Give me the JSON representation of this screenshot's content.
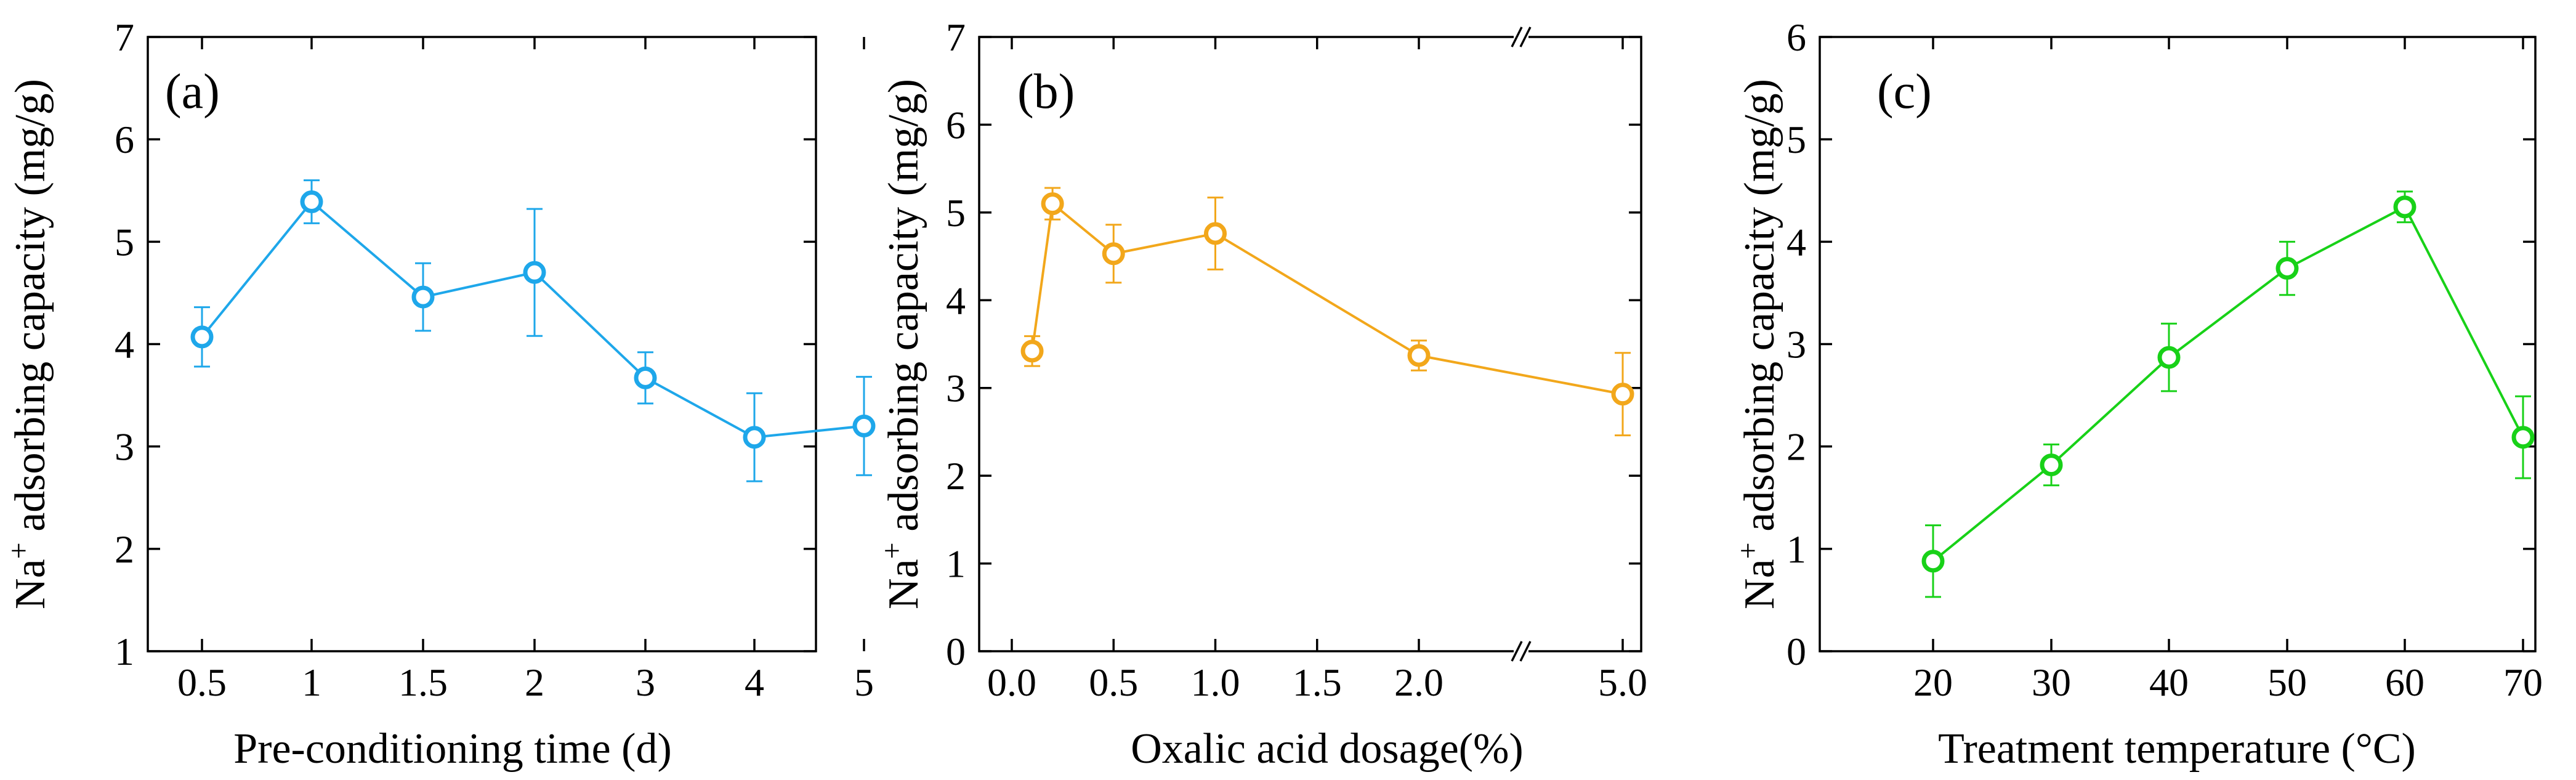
{
  "colors": {
    "panel_a": "#1ea7ea",
    "panel_b": "#f2a71b",
    "panel_c": "#18d118",
    "axis": "#000000"
  },
  "chart_data": [
    {
      "id": "a",
      "type": "line",
      "panel_label": "(a)",
      "xlabel": "Pre-conditioning time (d)",
      "ylabel_main": "Na",
      "ylabel_sup": "+",
      "ylabel_rest": " adsorbing capacity (mg/g)",
      "ylim": [
        1,
        7
      ],
      "yticks": [
        1,
        2,
        3,
        4,
        5,
        6,
        7
      ],
      "x_scale": "categorical",
      "categories": [
        "0.5",
        "1",
        "1.5",
        "2",
        "3",
        "4",
        "5"
      ],
      "series": [
        {
          "name": "Na+ adsorbing capacity",
          "values": [
            4.07,
            5.39,
            4.46,
            4.7,
            3.67,
            3.09,
            3.2
          ],
          "errors": [
            0.29,
            0.21,
            0.33,
            0.62,
            0.25,
            0.43,
            0.48
          ],
          "segments": [
            [
              0,
              6
            ]
          ]
        }
      ]
    },
    {
      "id": "b",
      "type": "line",
      "panel_label": "(b)",
      "xlabel": "Oxalic acid dosage(%)",
      "ylabel_main": "Na",
      "ylabel_sup": "+",
      "ylabel_rest": " adsorbing capacity (mg/g)",
      "ylim": [
        0,
        7
      ],
      "yticks": [
        0,
        1,
        2,
        3,
        4,
        5,
        6,
        7
      ],
      "x_scale": "broken",
      "xticks": [
        0.0,
        0.5,
        1.0,
        1.5,
        2.0,
        5.0
      ],
      "xtick_labels": [
        "0.0",
        "0.5",
        "1.0",
        "1.5",
        "2.0",
        "5.0"
      ],
      "axis_break": "between 2.0 and 5.0",
      "series": [
        {
          "name": "Na+ adsorbing capacity",
          "x": [
            0.1,
            0.2,
            0.5,
            1.0,
            2.0,
            5.0
          ],
          "values": [
            3.42,
            5.1,
            4.53,
            4.76,
            3.37,
            2.93
          ],
          "errors": [
            0.17,
            0.18,
            0.33,
            0.41,
            0.17,
            0.47
          ],
          "segments": [
            [
              0,
              4
            ],
            [
              4,
              5
            ]
          ]
        }
      ]
    },
    {
      "id": "c",
      "type": "line",
      "panel_label": "(c)",
      "xlabel": "Treatment temperature (°C)",
      "ylabel_main": "Na",
      "ylabel_sup": "+",
      "ylabel_rest": " adsorbing capacity (mg/g)",
      "ylim": [
        0,
        6
      ],
      "yticks": [
        0,
        1,
        2,
        3,
        4,
        5,
        6
      ],
      "x_scale": "categorical",
      "categories": [
        "20",
        "30",
        "40",
        "50",
        "60",
        "70"
      ],
      "series": [
        {
          "name": "Na+ adsorbing capacity",
          "values": [
            0.88,
            1.82,
            2.87,
            3.74,
            4.34,
            2.09
          ],
          "errors": [
            0.35,
            0.2,
            0.33,
            0.26,
            0.15,
            0.4
          ],
          "segments": [
            [
              0,
              5
            ]
          ]
        }
      ]
    }
  ]
}
